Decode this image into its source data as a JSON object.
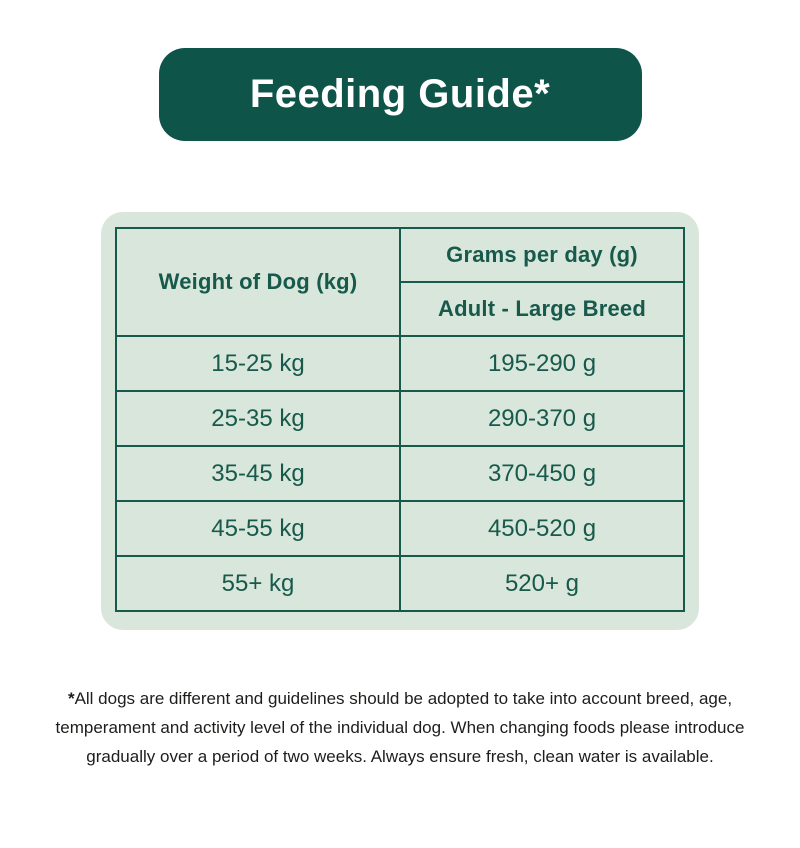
{
  "banner": {
    "title": "Feeding Guide*"
  },
  "table": {
    "weight_header": "Weight of Dog (kg)",
    "grams_header": "Grams per day (g)",
    "breed_header": "Adult - Large Breed",
    "rows": [
      {
        "weight": "15-25 kg",
        "grams": "195-290 g"
      },
      {
        "weight": "25-35 kg",
        "grams": "290-370 g"
      },
      {
        "weight": "35-45 kg",
        "grams": "370-450 g"
      },
      {
        "weight": "45-55 kg",
        "grams": "450-520 g"
      },
      {
        "weight": "55+ kg",
        "grams": "520+ g"
      }
    ]
  },
  "footnote": {
    "marker": "*",
    "line1": "All dogs are different and guidelines should be adopted to take into account breed, age,",
    "line2": "temperament and activity level of the individual dog. When changing foods please introduce",
    "line3": "gradually over a period of two weeks. Always ensure fresh, clean water is available."
  },
  "colors": {
    "dark_green": "#0e5448",
    "light_green": "#d9e6db",
    "text_green": "#175a4c",
    "footnote_color": "#1d1d1b",
    "page_bg": "#ffffff"
  }
}
